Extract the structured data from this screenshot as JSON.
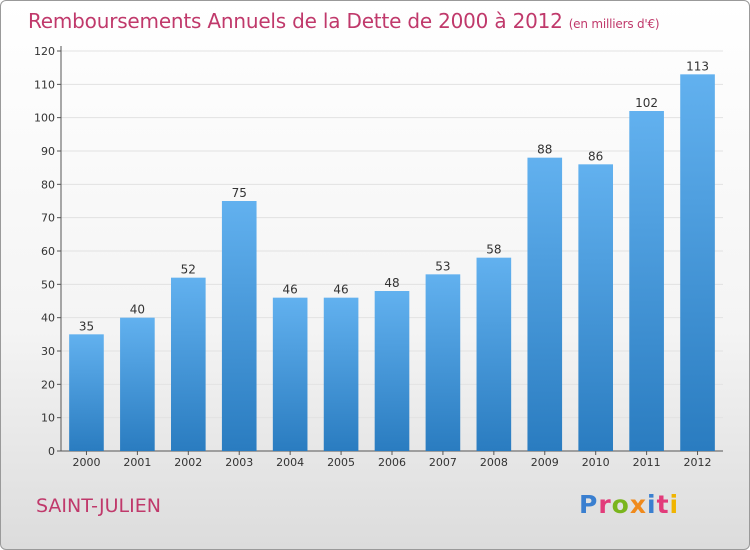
{
  "title": "Remboursements Annuels de la Dette de 2000 à 2012",
  "subtitle": "(en milliers d'€)",
  "place": "SAINT-JULIEN",
  "logo": {
    "letters": [
      "P",
      "r",
      "o",
      "x",
      "i",
      "t",
      "i"
    ],
    "colors": [
      "#3a7fd0",
      "#e23b7a",
      "#7ab51d",
      "#f08a1c",
      "#3a7fd0",
      "#e23b7a",
      "#f0b400"
    ]
  },
  "colors": {
    "title": "#c0396b",
    "bar_light": "#62b1ef",
    "bar_dark": "#2a7cc0"
  },
  "chart_data": {
    "type": "bar",
    "categories": [
      "2000",
      "2001",
      "2002",
      "2003",
      "2004",
      "2005",
      "2006",
      "2007",
      "2008",
      "2009",
      "2010",
      "2011",
      "2012"
    ],
    "values": [
      35,
      40,
      52,
      75,
      46,
      46,
      48,
      53,
      58,
      88,
      86,
      102,
      113
    ],
    "ylim": [
      0,
      120
    ],
    "yticks": [
      0,
      10,
      20,
      30,
      40,
      50,
      60,
      70,
      80,
      90,
      100,
      110,
      120
    ],
    "grid": true,
    "legend": "none"
  }
}
